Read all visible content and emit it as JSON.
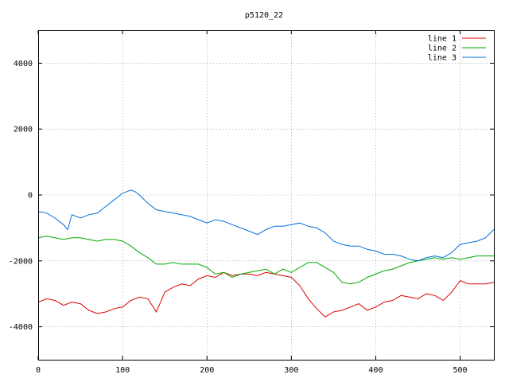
{
  "chart_data": {
    "type": "line",
    "title": "p5120_22",
    "xlabel": "",
    "ylabel": "",
    "xlim": [
      0,
      540
    ],
    "ylim": [
      -5000,
      5000
    ],
    "x_ticks": [
      0,
      100,
      200,
      300,
      400,
      500
    ],
    "y_ticks": [
      -4000,
      -2000,
      0,
      2000,
      4000
    ],
    "grid": true,
    "legend_position": "top-right",
    "series": [
      {
        "name": "line 1",
        "color": "#dd0000",
        "x": [
          0,
          10,
          20,
          30,
          40,
          50,
          60,
          70,
          80,
          90,
          100,
          110,
          120,
          130,
          140,
          150,
          160,
          170,
          180,
          190,
          200,
          210,
          220,
          230,
          240,
          250,
          260,
          270,
          280,
          290,
          300,
          310,
          320,
          330,
          340,
          350,
          360,
          370,
          380,
          390,
          400,
          410,
          420,
          430,
          440,
          450,
          460,
          470,
          480,
          490,
          500,
          510,
          520,
          530,
          540
        ],
        "values": [
          -3250,
          -3150,
          -3200,
          -3350,
          -3250,
          -3300,
          -3500,
          -3600,
          -3550,
          -3450,
          -3400,
          -3200,
          -3100,
          -3150,
          -3550,
          -2950,
          -2800,
          -2700,
          -2750,
          -2550,
          -2450,
          -2500,
          -2350,
          -2450,
          -2400,
          -2400,
          -2450,
          -2350,
          -2400,
          -2450,
          -2500,
          -2750,
          -3150,
          -3450,
          -3700,
          -3550,
          -3500,
          -3400,
          -3300,
          -3500,
          -3400,
          -3250,
          -3200,
          -3050,
          -3100,
          -3150,
          -3000,
          -3050,
          -3200,
          -2950,
          -2600,
          -2700,
          -2700,
          -2700,
          -2650
        ]
      },
      {
        "name": "line 2",
        "color": "#00aa00",
        "x": [
          0,
          10,
          20,
          30,
          40,
          50,
          60,
          70,
          80,
          90,
          100,
          110,
          120,
          130,
          140,
          150,
          160,
          170,
          180,
          190,
          200,
          210,
          220,
          230,
          240,
          250,
          260,
          270,
          280,
          290,
          300,
          310,
          320,
          330,
          340,
          350,
          360,
          370,
          380,
          390,
          400,
          410,
          420,
          430,
          440,
          450,
          460,
          470,
          480,
          490,
          500,
          510,
          520,
          530,
          540
        ],
        "values": [
          -1300,
          -1250,
          -1300,
          -1350,
          -1300,
          -1300,
          -1350,
          -1400,
          -1350,
          -1350,
          -1400,
          -1550,
          -1750,
          -1900,
          -2100,
          -2100,
          -2050,
          -2100,
          -2100,
          -2100,
          -2200,
          -2400,
          -2350,
          -2500,
          -2400,
          -2350,
          -2300,
          -2250,
          -2400,
          -2250,
          -2350,
          -2200,
          -2050,
          -2050,
          -2200,
          -2350,
          -2650,
          -2700,
          -2650,
          -2500,
          -2400,
          -2300,
          -2250,
          -2150,
          -2050,
          -2000,
          -1950,
          -1900,
          -1950,
          -1900,
          -1950,
          -1900,
          -1850,
          -1850,
          -1850
        ]
      },
      {
        "name": "line 3",
        "color": "#0070dd",
        "x": [
          0,
          10,
          20,
          30,
          35,
          40,
          50,
          60,
          70,
          80,
          90,
          100,
          110,
          115,
          120,
          130,
          140,
          150,
          160,
          170,
          180,
          190,
          200,
          210,
          220,
          230,
          240,
          250,
          260,
          270,
          280,
          290,
          300,
          310,
          320,
          330,
          340,
          350,
          360,
          370,
          380,
          390,
          400,
          410,
          420,
          430,
          440,
          450,
          460,
          470,
          480,
          490,
          500,
          510,
          520,
          530,
          540
        ],
        "values": [
          -500,
          -550,
          -700,
          -900,
          -1050,
          -600,
          -700,
          -600,
          -550,
          -350,
          -150,
          50,
          150,
          100,
          0,
          -250,
          -450,
          -500,
          -550,
          -600,
          -650,
          -750,
          -850,
          -750,
          -800,
          -900,
          -1000,
          -1100,
          -1200,
          -1050,
          -950,
          -950,
          -900,
          -850,
          -950,
          -1000,
          -1150,
          -1400,
          -1500,
          -1550,
          -1550,
          -1650,
          -1700,
          -1800,
          -1800,
          -1850,
          -1950,
          -2000,
          -1900,
          -1850,
          -1900,
          -1750,
          -1500,
          -1450,
          -1400,
          -1300,
          -1050
        ]
      }
    ]
  }
}
